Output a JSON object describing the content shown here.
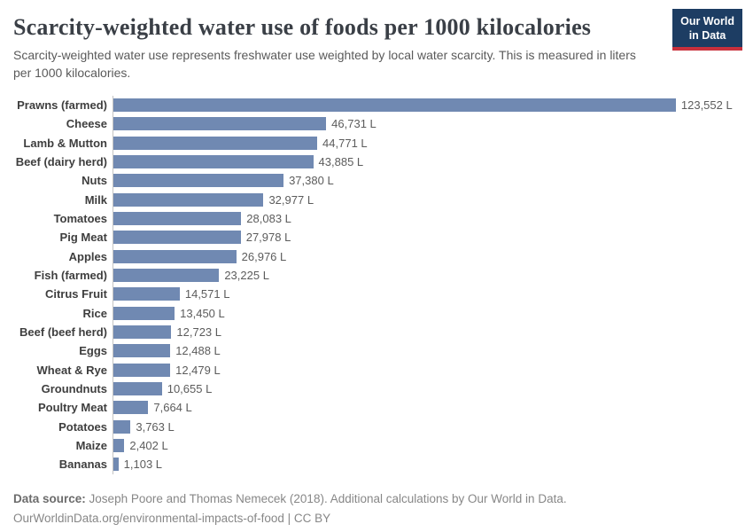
{
  "header": {
    "title": "Scarcity-weighted water use of foods per 1000 kilocalories",
    "subtitle": "Scarcity-weighted water use represents freshwater use weighted by local water scarcity. This is measured in liters per 1000 kilocalories.",
    "logo": {
      "line1": "Our World",
      "line2": "in Data"
    }
  },
  "chart_data": {
    "type": "bar",
    "orientation": "horizontal",
    "title": "Scarcity-weighted water use of foods per 1000 kilocalories",
    "unit": "liters per 1000 kilocalories",
    "grid": false,
    "legend": false,
    "xlim": [
      0,
      123552
    ],
    "bar_color": "#7089b2",
    "categories": [
      "Prawns (farmed)",
      "Cheese",
      "Lamb & Mutton",
      "Beef (dairy herd)",
      "Nuts",
      "Milk",
      "Tomatoes",
      "Pig Meat",
      "Apples",
      "Fish (farmed)",
      "Citrus Fruit",
      "Rice",
      "Beef (beef herd)",
      "Eggs",
      "Wheat & Rye",
      "Groundnuts",
      "Poultry Meat",
      "Potatoes",
      "Maize",
      "Bananas"
    ],
    "values": [
      123552,
      46731,
      44771,
      43885,
      37380,
      32977,
      28083,
      27978,
      26976,
      23225,
      14571,
      13450,
      12723,
      12488,
      12479,
      10655,
      7664,
      3763,
      2402,
      1103
    ],
    "value_labels": [
      "123,552 L",
      "46,731 L",
      "44,771 L",
      "43,885 L",
      "37,380 L",
      "32,977 L",
      "28,083 L",
      "27,978 L",
      "26,976 L",
      "23,225 L",
      "14,571 L",
      "13,450 L",
      "12,723 L",
      "12,488 L",
      "12,479 L",
      "10,655 L",
      "7,664 L",
      "3,763 L",
      "2,402 L",
      "1,103 L"
    ]
  },
  "footer": {
    "source_label": "Data source:",
    "source_text": "Joseph Poore and Thomas Nemecek (2018). Additional calculations by Our World in Data.",
    "citation": "OurWorldinData.org/environmental-impacts-of-food | CC BY"
  },
  "colors": {
    "bar": "#7089b2",
    "logo_background": "#1d3d63",
    "logo_underline": "#c9303c",
    "title_text": "#3a3f46",
    "axis_line": "#c4c4c4"
  }
}
